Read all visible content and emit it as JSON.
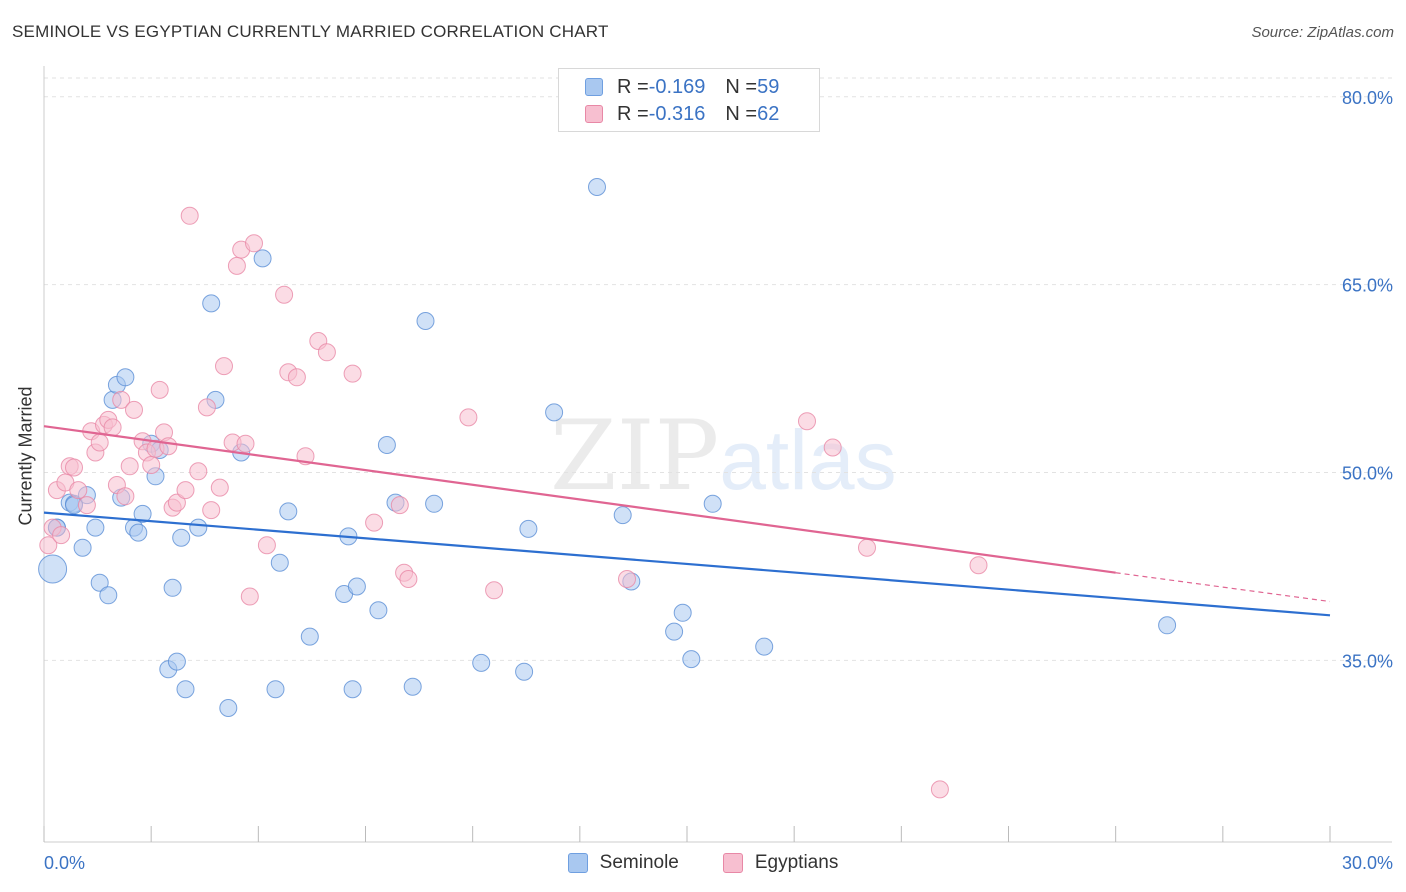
{
  "title": "SEMINOLE VS EGYPTIAN CURRENTLY MARRIED CORRELATION CHART",
  "source": "Source: ZipAtlas.com",
  "watermark": {
    "zip": "ZIP",
    "atlas": "atlas"
  },
  "legend": [
    {
      "r_label": "R = ",
      "r_value": "-0.169",
      "n_label": "N = ",
      "n_value": "59",
      "color": "#a9c8f0",
      "stroke": "#6f9fe0"
    },
    {
      "r_label": "R = ",
      "r_value": "-0.316",
      "n_label": "N = ",
      "n_value": "62",
      "color": "#f7bfd0",
      "stroke": "#e888a6"
    }
  ],
  "bottom_legend": [
    "Seminole",
    "Egyptians"
  ],
  "chart_data": {
    "type": "scatter",
    "title": "SEMINOLE VS EGYPTIAN CURRENTLY MARRIED CORRELATION CHART",
    "xlabel": "",
    "ylabel": "Currently Married",
    "xlim": [
      0,
      30
    ],
    "ylim": [
      20.5,
      81.5
    ],
    "x_tick_labels": [
      "0.0%",
      "30.0%"
    ],
    "y_ticks": [
      35,
      50,
      65,
      80
    ],
    "y_tick_labels": [
      "35.0%",
      "50.0%",
      "65.0%",
      "80.0%"
    ],
    "grid": true,
    "legend_position": "top-center",
    "series": [
      {
        "name": "Seminole",
        "color": "#a9c8f0",
        "stroke": "#5b8fd6",
        "line_color": "#2d6fd0",
        "trend": {
          "x0": 0.0,
          "y0": 46.8,
          "x1": 30.0,
          "y1": 38.6
        },
        "points": [
          [
            0.2,
            42.3
          ],
          [
            0.3,
            45.6
          ],
          [
            0.6,
            47.6
          ],
          [
            0.7,
            47.5
          ],
          [
            0.9,
            44.0
          ],
          [
            1.0,
            48.2
          ],
          [
            1.2,
            45.6
          ],
          [
            1.3,
            41.2
          ],
          [
            1.5,
            40.2
          ],
          [
            1.6,
            55.8
          ],
          [
            1.7,
            57.0
          ],
          [
            1.8,
            48.0
          ],
          [
            1.9,
            57.6
          ],
          [
            2.1,
            45.6
          ],
          [
            2.2,
            45.2
          ],
          [
            2.3,
            46.7
          ],
          [
            2.5,
            52.3
          ],
          [
            2.6,
            49.7
          ],
          [
            2.7,
            51.8
          ],
          [
            2.9,
            34.3
          ],
          [
            3.0,
            40.8
          ],
          [
            3.1,
            34.9
          ],
          [
            3.2,
            44.8
          ],
          [
            3.3,
            32.7
          ],
          [
            3.6,
            45.6
          ],
          [
            3.9,
            63.5
          ],
          [
            4.0,
            55.8
          ],
          [
            4.3,
            31.2
          ],
          [
            4.6,
            51.6
          ],
          [
            5.1,
            67.1
          ],
          [
            5.4,
            32.7
          ],
          [
            5.5,
            42.8
          ],
          [
            5.7,
            46.9
          ],
          [
            6.2,
            36.9
          ],
          [
            7.0,
            40.3
          ],
          [
            7.1,
            44.9
          ],
          [
            7.2,
            32.7
          ],
          [
            7.3,
            40.9
          ],
          [
            7.8,
            39.0
          ],
          [
            8.0,
            52.2
          ],
          [
            8.2,
            47.6
          ],
          [
            8.6,
            32.9
          ],
          [
            8.9,
            62.1
          ],
          [
            9.1,
            47.5
          ],
          [
            10.2,
            34.8
          ],
          [
            11.2,
            34.1
          ],
          [
            11.3,
            45.5
          ],
          [
            11.9,
            54.8
          ],
          [
            12.9,
            72.8
          ],
          [
            13.5,
            46.6
          ],
          [
            13.7,
            41.3
          ],
          [
            14.7,
            37.3
          ],
          [
            14.9,
            38.8
          ],
          [
            15.1,
            35.1
          ],
          [
            15.6,
            47.5
          ],
          [
            16.8,
            36.1
          ],
          [
            0.3,
            45.6
          ],
          [
            0.7,
            47.4
          ],
          [
            26.2,
            37.8
          ]
        ]
      },
      {
        "name": "Egyptians",
        "color": "#f7bfd0",
        "stroke": "#e888a6",
        "line_color": "#e06592",
        "trend": {
          "x0": 0.0,
          "y0": 53.7,
          "x1": 25.0,
          "y1": 42.0
        },
        "trend_dashed": {
          "x0": 25.0,
          "y0": 42.0,
          "x1": 30.0,
          "y1": 39.7
        },
        "points": [
          [
            0.1,
            44.2
          ],
          [
            0.2,
            45.6
          ],
          [
            0.3,
            48.6
          ],
          [
            0.4,
            45.0
          ],
          [
            0.5,
            49.2
          ],
          [
            0.6,
            50.5
          ],
          [
            0.7,
            50.4
          ],
          [
            0.8,
            48.6
          ],
          [
            1.0,
            47.4
          ],
          [
            1.1,
            53.3
          ],
          [
            1.2,
            51.6
          ],
          [
            1.3,
            52.4
          ],
          [
            1.4,
            53.8
          ],
          [
            1.5,
            54.2
          ],
          [
            1.6,
            53.6
          ],
          [
            1.7,
            49.0
          ],
          [
            1.8,
            55.8
          ],
          [
            1.9,
            48.1
          ],
          [
            2.0,
            50.5
          ],
          [
            2.1,
            55.0
          ],
          [
            2.3,
            52.5
          ],
          [
            2.4,
            51.6
          ],
          [
            2.5,
            50.6
          ],
          [
            2.6,
            51.9
          ],
          [
            2.7,
            56.6
          ],
          [
            2.8,
            53.2
          ],
          [
            2.9,
            52.1
          ],
          [
            3.0,
            47.2
          ],
          [
            3.1,
            47.6
          ],
          [
            3.3,
            48.6
          ],
          [
            3.4,
            70.5
          ],
          [
            3.6,
            50.1
          ],
          [
            3.8,
            55.2
          ],
          [
            3.9,
            47.0
          ],
          [
            4.1,
            48.8
          ],
          [
            4.2,
            58.5
          ],
          [
            4.4,
            52.4
          ],
          [
            4.5,
            66.5
          ],
          [
            4.6,
            67.8
          ],
          [
            4.7,
            52.3
          ],
          [
            4.8,
            40.1
          ],
          [
            4.9,
            68.3
          ],
          [
            5.2,
            44.2
          ],
          [
            5.6,
            64.2
          ],
          [
            5.7,
            58.0
          ],
          [
            5.9,
            57.6
          ],
          [
            6.1,
            51.3
          ],
          [
            6.4,
            60.5
          ],
          [
            6.6,
            59.6
          ],
          [
            7.2,
            57.9
          ],
          [
            7.7,
            46.0
          ],
          [
            8.3,
            47.4
          ],
          [
            8.4,
            42.0
          ],
          [
            8.5,
            41.5
          ],
          [
            9.9,
            54.4
          ],
          [
            10.5,
            40.6
          ],
          [
            13.6,
            41.5
          ],
          [
            17.8,
            54.1
          ],
          [
            18.4,
            52.0
          ],
          [
            19.2,
            44.0
          ],
          [
            21.8,
            42.6
          ],
          [
            20.9,
            24.7
          ]
        ]
      }
    ]
  }
}
